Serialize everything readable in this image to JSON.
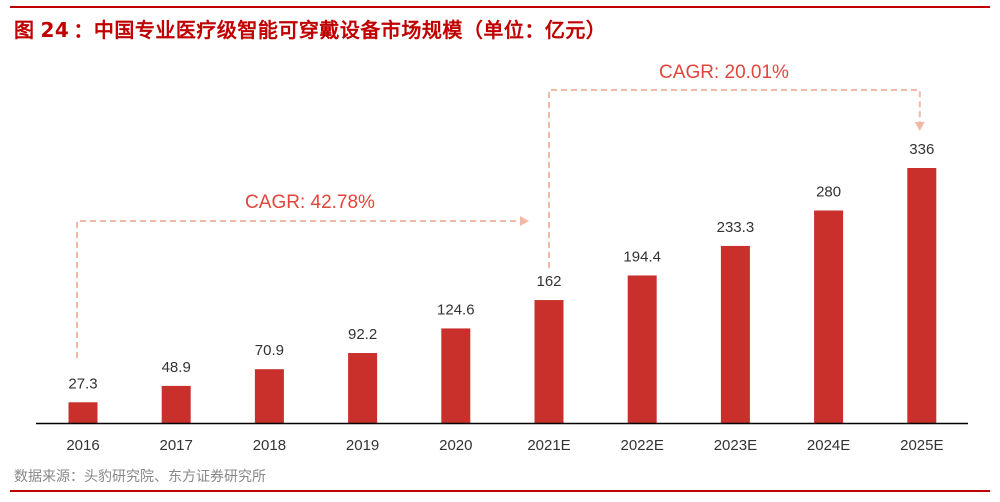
{
  "title": {
    "prefix": "图",
    "number": "24",
    "text": "中国专业医疗级智能可穿戴设备市场规模（单位：亿元）"
  },
  "source": "数据来源：头豹研究院、东方证券研究所",
  "colors": {
    "bar": "#c9302c",
    "accent": "#c00000",
    "cagr_text": "#e0463c",
    "cagr_line": "#f3b9a8",
    "axis": "#000000",
    "label": "#333333"
  },
  "chart_data": {
    "type": "bar",
    "categories": [
      "2016",
      "2017",
      "2018",
      "2019",
      "2020",
      "2021E",
      "2022E",
      "2023E",
      "2024E",
      "2025E"
    ],
    "values": [
      27.3,
      48.9,
      70.9,
      92.2,
      124.6,
      162,
      194.4,
      233.3,
      280,
      336
    ],
    "value_labels": [
      "27.3",
      "48.9",
      "70.9",
      "92.2",
      "124.6",
      "162",
      "194.4",
      "233.3",
      "280",
      "336"
    ],
    "ylim": [
      0,
      336
    ],
    "xlabel": "",
    "ylabel": "",
    "grid": false,
    "annotations": [
      {
        "text": "CAGR: 42.78%",
        "from": "2016",
        "to": "2021E"
      },
      {
        "text": "CAGR: 20.01%",
        "from": "2021E",
        "to": "2025E"
      }
    ]
  }
}
